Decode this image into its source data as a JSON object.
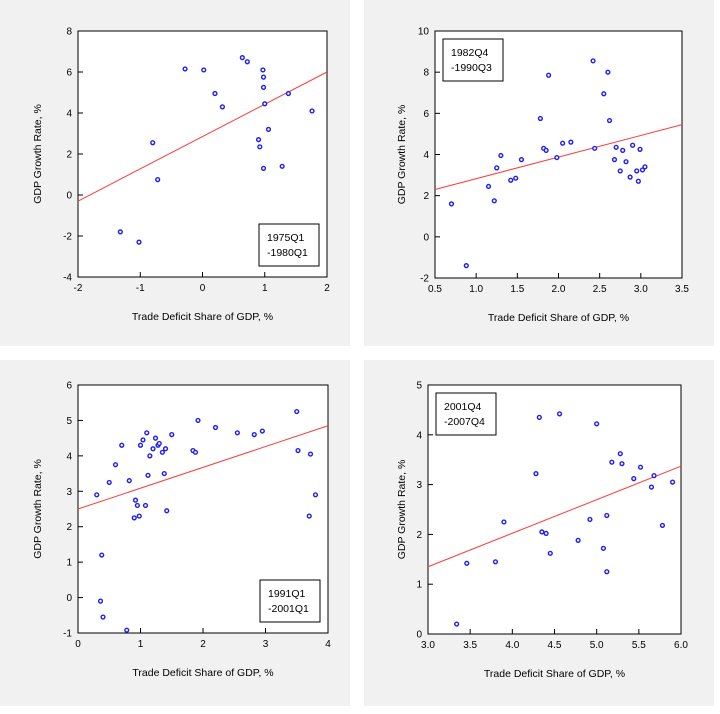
{
  "chart_data": [
    {
      "type": "scatter",
      "title": "",
      "xlabel": "Trade Deficit Share of GDP, %",
      "ylabel": "GDP Growth Rate, %",
      "xlim": [
        -2,
        2
      ],
      "ylim": [
        -4,
        8
      ],
      "xticks": [
        -2,
        -1,
        0,
        1,
        2
      ],
      "xtick_labels": [
        "-2",
        "-1",
        "0",
        "1",
        "2"
      ],
      "yticks": [
        -4,
        -2,
        0,
        2,
        4,
        6,
        8
      ],
      "ytick_labels": [
        "-4",
        "-2",
        "0",
        "2",
        "4",
        "6",
        "8"
      ],
      "annotation": [
        "1975Q1",
        "-1980Q1"
      ],
      "annotation_position": "bottom-right",
      "point_color": "#1f1ff5",
      "fit_color": "#ff3a3a",
      "fit_line": [
        [
          -2,
          -0.3
        ],
        [
          2,
          6.0
        ]
      ],
      "points": [
        [
          -1.32,
          -1.8
        ],
        [
          -1.02,
          -2.3
        ],
        [
          -0.8,
          2.55
        ],
        [
          -0.72,
          0.75
        ],
        [
          -0.28,
          6.15
        ],
        [
          0.02,
          6.1
        ],
        [
          0.2,
          4.95
        ],
        [
          0.32,
          4.3
        ],
        [
          0.64,
          6.7
        ],
        [
          0.72,
          6.5
        ],
        [
          0.9,
          2.7
        ],
        [
          0.92,
          2.35
        ],
        [
          0.97,
          6.1
        ],
        [
          0.98,
          5.75
        ],
        [
          0.98,
          5.25
        ],
        [
          0.98,
          1.3
        ],
        [
          1.0,
          4.45
        ],
        [
          1.06,
          3.2
        ],
        [
          1.28,
          1.4
        ],
        [
          1.38,
          4.95
        ],
        [
          1.76,
          4.1
        ]
      ]
    },
    {
      "type": "scatter",
      "title": "",
      "xlabel": "Trade Deficit Share of GDP, %",
      "ylabel": "GDP Growth Rate, %",
      "xlim": [
        0.5,
        3.5
      ],
      "ylim": [
        -2,
        10
      ],
      "xticks": [
        0.5,
        1.0,
        1.5,
        2.0,
        2.5,
        3.0,
        3.5
      ],
      "xtick_labels": [
        "0.5",
        "1.0",
        "1.5",
        "2.0",
        "2.5",
        "3.0",
        "3.5"
      ],
      "yticks": [
        -2,
        0,
        2,
        4,
        6,
        8,
        10
      ],
      "ytick_labels": [
        "-2",
        "0",
        "2",
        "4",
        "6",
        "8",
        "10"
      ],
      "annotation": [
        "1982Q4",
        "-1990Q3"
      ],
      "annotation_position": "top-left",
      "point_color": "#1f1ff5",
      "fit_color": "#ff3a3a",
      "fit_line": [
        [
          0.5,
          2.3
        ],
        [
          3.5,
          5.45
        ]
      ],
      "points": [
        [
          0.7,
          1.6
        ],
        [
          0.88,
          -1.4
        ],
        [
          1.15,
          2.45
        ],
        [
          1.22,
          1.75
        ],
        [
          1.25,
          3.35
        ],
        [
          1.3,
          3.95
        ],
        [
          1.42,
          2.75
        ],
        [
          1.48,
          2.85
        ],
        [
          1.55,
          3.75
        ],
        [
          1.78,
          5.75
        ],
        [
          1.82,
          4.3
        ],
        [
          1.85,
          4.2
        ],
        [
          1.88,
          7.85
        ],
        [
          1.98,
          3.85
        ],
        [
          2.05,
          4.55
        ],
        [
          2.15,
          4.6
        ],
        [
          2.42,
          8.55
        ],
        [
          2.44,
          4.3
        ],
        [
          2.55,
          6.95
        ],
        [
          2.6,
          8.0
        ],
        [
          2.62,
          5.65
        ],
        [
          2.68,
          3.75
        ],
        [
          2.7,
          4.35
        ],
        [
          2.75,
          3.2
        ],
        [
          2.78,
          4.2
        ],
        [
          2.82,
          3.65
        ],
        [
          2.87,
          2.9
        ],
        [
          2.9,
          4.45
        ],
        [
          2.95,
          3.2
        ],
        [
          2.97,
          2.7
        ],
        [
          2.99,
          4.25
        ],
        [
          3.02,
          3.25
        ],
        [
          3.05,
          3.4
        ]
      ]
    },
    {
      "type": "scatter",
      "title": "",
      "xlabel": "Trade Deficit Share of GDP, %",
      "ylabel": "GDP Growth Rate, %",
      "xlim": [
        0,
        4
      ],
      "ylim": [
        -1,
        6
      ],
      "xticks": [
        0,
        1,
        2,
        3,
        4
      ],
      "xtick_labels": [
        "0",
        "1",
        "2",
        "3",
        "4"
      ],
      "yticks": [
        -1,
        0,
        1,
        2,
        3,
        4,
        5,
        6
      ],
      "ytick_labels": [
        "-1",
        "0",
        "1",
        "2",
        "3",
        "4",
        "5",
        "6"
      ],
      "annotation": [
        "1991Q1",
        "-2001Q1"
      ],
      "annotation_position": "bottom-right",
      "point_color": "#1f1ff5",
      "fit_color": "#ff3a3a",
      "fit_line": [
        [
          0,
          2.5
        ],
        [
          4,
          4.85
        ]
      ],
      "points": [
        [
          0.3,
          2.9
        ],
        [
          0.36,
          -0.1
        ],
        [
          0.38,
          1.2
        ],
        [
          0.4,
          -0.55
        ],
        [
          0.5,
          3.25
        ],
        [
          0.6,
          3.75
        ],
        [
          0.7,
          4.3
        ],
        [
          0.78,
          -0.92
        ],
        [
          0.82,
          3.3
        ],
        [
          0.9,
          2.25
        ],
        [
          0.92,
          2.75
        ],
        [
          0.95,
          2.6
        ],
        [
          0.98,
          2.3
        ],
        [
          1.0,
          4.3
        ],
        [
          1.04,
          4.45
        ],
        [
          1.08,
          2.6
        ],
        [
          1.1,
          4.65
        ],
        [
          1.12,
          3.45
        ],
        [
          1.15,
          4.0
        ],
        [
          1.2,
          4.2
        ],
        [
          1.24,
          4.5
        ],
        [
          1.28,
          4.3
        ],
        [
          1.3,
          4.35
        ],
        [
          1.35,
          4.1
        ],
        [
          1.38,
          3.5
        ],
        [
          1.4,
          4.2
        ],
        [
          1.42,
          2.45
        ],
        [
          1.5,
          4.6
        ],
        [
          1.84,
          4.15
        ],
        [
          1.88,
          4.1
        ],
        [
          1.92,
          5.0
        ],
        [
          2.2,
          4.8
        ],
        [
          2.55,
          4.65
        ],
        [
          2.82,
          4.6
        ],
        [
          2.95,
          4.7
        ],
        [
          3.5,
          5.25
        ],
        [
          3.52,
          4.15
        ],
        [
          3.7,
          2.3
        ],
        [
          3.72,
          4.05
        ],
        [
          3.8,
          2.9
        ]
      ]
    },
    {
      "type": "scatter",
      "title": "",
      "xlabel": "Trade Deficit Share of GDP, %",
      "ylabel": "GDP Growth Rate, %",
      "xlim": [
        3.0,
        6.0
      ],
      "ylim": [
        0,
        5
      ],
      "xticks": [
        3.0,
        3.5,
        4.0,
        4.5,
        5.0,
        5.5,
        6.0
      ],
      "xtick_labels": [
        "3.0",
        "3.5",
        "4.0",
        "4.5",
        "5.0",
        "5.5",
        "6.0"
      ],
      "yticks": [
        0,
        1,
        2,
        3,
        4,
        5
      ],
      "ytick_labels": [
        "0",
        "1",
        "2",
        "3",
        "4",
        "5"
      ],
      "annotation": [
        "2001Q4",
        "-2007Q4"
      ],
      "annotation_position": "top-left",
      "point_color": "#1f1ff5",
      "fit_color": "#ff3a3a",
      "fit_line": [
        [
          3.0,
          1.35
        ],
        [
          6.0,
          3.37
        ]
      ],
      "points": [
        [
          3.34,
          0.2
        ],
        [
          3.46,
          1.42
        ],
        [
          3.8,
          1.45
        ],
        [
          3.9,
          2.25
        ],
        [
          4.28,
          3.22
        ],
        [
          4.32,
          4.35
        ],
        [
          4.35,
          2.05
        ],
        [
          4.4,
          2.02
        ],
        [
          4.45,
          1.62
        ],
        [
          4.56,
          4.42
        ],
        [
          4.78,
          1.88
        ],
        [
          4.92,
          2.3
        ],
        [
          5.0,
          4.22
        ],
        [
          5.08,
          1.72
        ],
        [
          5.12,
          1.25
        ],
        [
          5.12,
          2.38
        ],
        [
          5.18,
          3.45
        ],
        [
          5.28,
          3.62
        ],
        [
          5.3,
          3.42
        ],
        [
          5.44,
          3.12
        ],
        [
          5.52,
          3.35
        ],
        [
          5.65,
          2.95
        ],
        [
          5.68,
          3.18
        ],
        [
          5.78,
          2.18
        ],
        [
          5.9,
          3.05
        ]
      ]
    }
  ]
}
